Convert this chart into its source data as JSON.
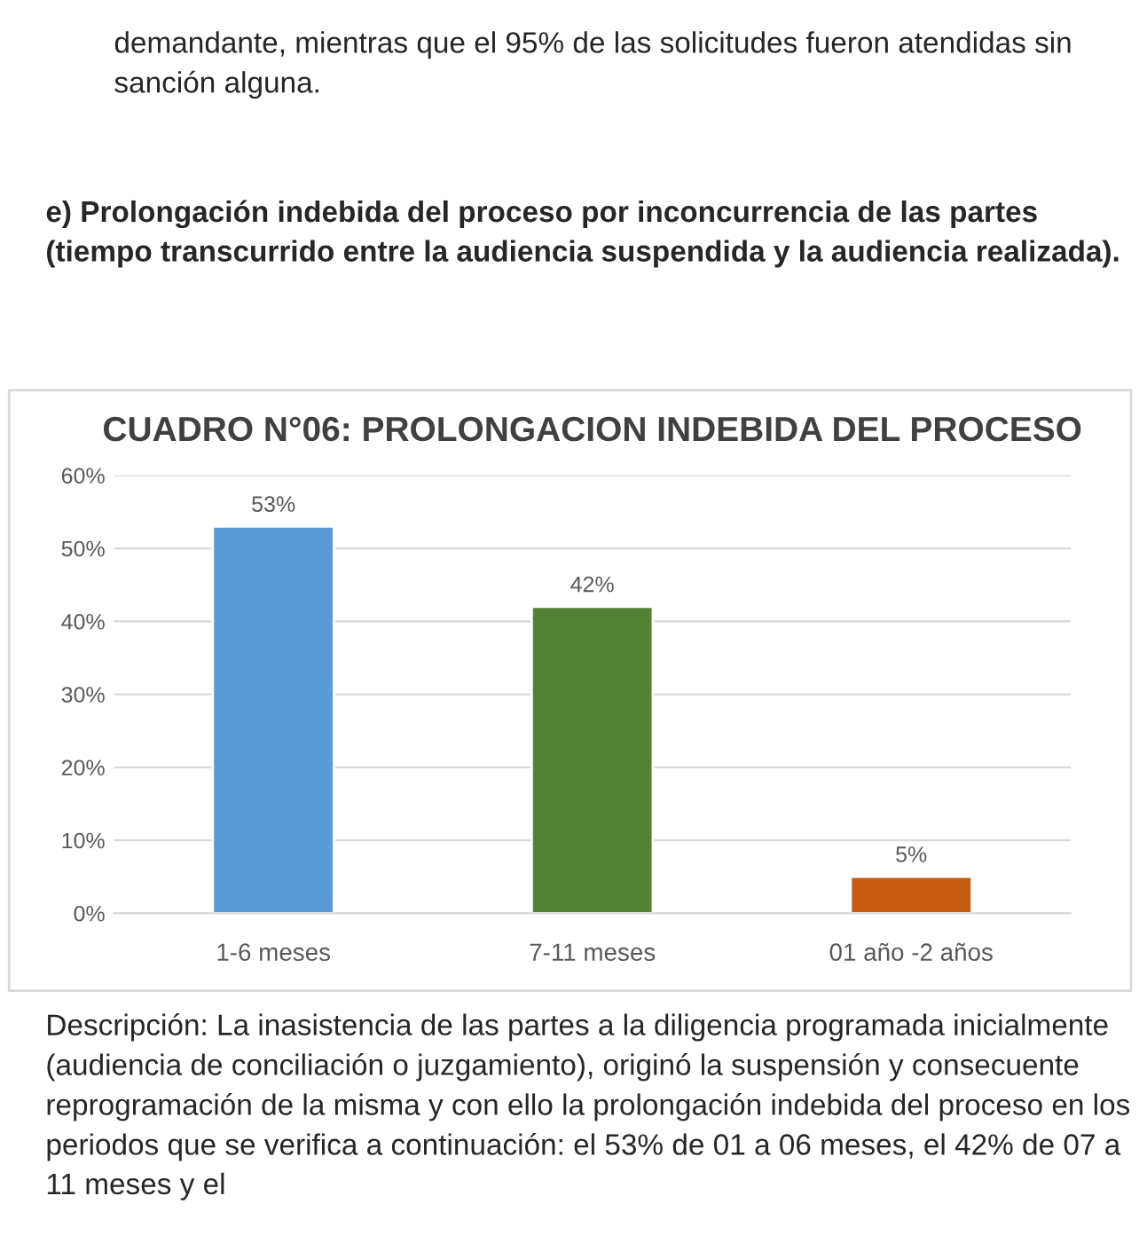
{
  "chart_data": {
    "type": "bar",
    "title": "CUADRO N°06: PROLONGACION INDEBIDA DEL PROCESO",
    "categories": [
      "1-6 meses",
      "7-11 meses",
      "01 año -2 años"
    ],
    "values": [
      53,
      42,
      5
    ],
    "colors": [
      "#5b9bd5",
      "#548235",
      "#c55a11"
    ],
    "value_labels": [
      "53%",
      "42%",
      "5%"
    ],
    "ylim": [
      0,
      60
    ],
    "yticks": [
      {
        "value": 0,
        "label": "0%"
      },
      {
        "value": 10,
        "label": "10%"
      },
      {
        "value": 20,
        "label": "20%"
      },
      {
        "value": 30,
        "label": "30%"
      },
      {
        "value": 40,
        "label": "40%"
      },
      {
        "value": 50,
        "label": "50%"
      },
      {
        "value": 60,
        "label": "60%"
      }
    ],
    "grid": "y",
    "annotations": [
      "demandante, mientras que el 95% de las solicitudes fueron atendidas sin sanción alguna.",
      "e) Prolongación indebida del proceso por inconcurrencia de las partes (tiempo transcurrido entre la audiencia suspendida y la audiencia realizada).",
      "Descripción: La inasistencia de las partes a la diligencia programada inicialmente (audiencia de conciliación o juzgamiento), originó la suspensión y consecuente reprogramación de la misma y con ello la prolongación indebida del proceso en los periodos que se verifica a continuación: el 53% de 01 a 06 meses, el 42% de 07 a 11 meses y el"
    ]
  }
}
